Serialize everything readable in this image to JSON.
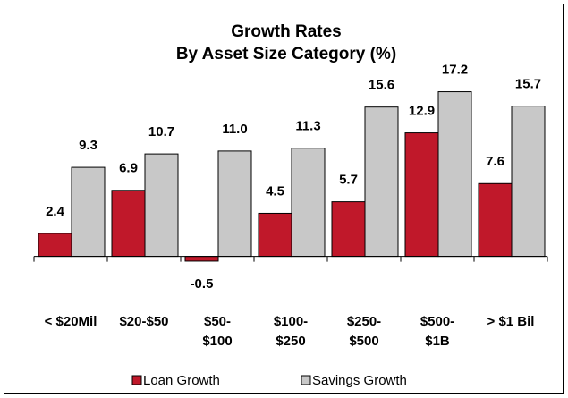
{
  "chart_data": {
    "type": "bar",
    "title": "Growth Rates",
    "subtitle": "By Asset Size Category (%)",
    "categories": [
      "< $20Mil",
      "$20-$50",
      "$50-\n$100",
      "$100-\n$250",
      "$250-\n$500",
      "$500-\n$1B",
      "> $1 Bil"
    ],
    "series": [
      {
        "name": "Loan Growth",
        "color": "#c0182a",
        "values": [
          2.4,
          6.9,
          -0.5,
          4.5,
          5.7,
          12.9,
          7.6
        ]
      },
      {
        "name": "Savings Growth",
        "color": "#c8c8c8",
        "values": [
          9.3,
          10.7,
          11.0,
          11.3,
          15.6,
          17.2,
          15.7
        ],
        "value_labels": [
          "9.3",
          "10.7",
          "11.0",
          "11.3",
          "15.6",
          "17.2",
          "15.7"
        ]
      }
    ],
    "ylim": [
      -2,
      18
    ],
    "legend": "bottom"
  }
}
